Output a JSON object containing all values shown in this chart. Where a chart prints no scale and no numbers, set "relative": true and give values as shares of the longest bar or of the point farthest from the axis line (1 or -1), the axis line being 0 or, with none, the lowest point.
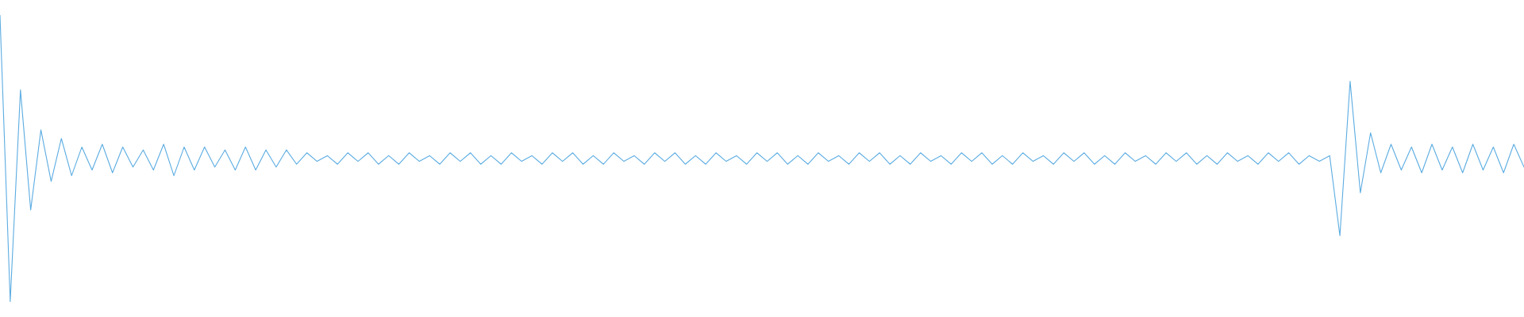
{
  "chart_data": {
    "type": "line",
    "relative": true,
    "legend": false,
    "marker": "none",
    "line_style": "solid",
    "categories": [
      null,
      null,
      null,
      null,
      null,
      null,
      null,
      null,
      null,
      null,
      null,
      null,
      null,
      null,
      null,
      null,
      null,
      null,
      null,
      null,
      null,
      null,
      null,
      null,
      null,
      null,
      null,
      null,
      null,
      null,
      null,
      null,
      null,
      null,
      null,
      null,
      null,
      null,
      null,
      null,
      null,
      null,
      null,
      null,
      null,
      null,
      null,
      null,
      null,
      null,
      null,
      null,
      null,
      null,
      null,
      null,
      null,
      null,
      null,
      null,
      null,
      null,
      null,
      null,
      null,
      null,
      null,
      null,
      null,
      null,
      null,
      null,
      null,
      null,
      null,
      null,
      null,
      null,
      null,
      null,
      null,
      null,
      null,
      null,
      null,
      null,
      null,
      null,
      null,
      null,
      null,
      null,
      null,
      null,
      null,
      null,
      null,
      null,
      null,
      null,
      null,
      null,
      null,
      null,
      null,
      null,
      null,
      null,
      null,
      null,
      null,
      null,
      null,
      null,
      null,
      null,
      null,
      null,
      null,
      null,
      null,
      null,
      null,
      null,
      null,
      null,
      null,
      null,
      null,
      null,
      null,
      null,
      null,
      null,
      null,
      null,
      null,
      null,
      null,
      null,
      null,
      null,
      null,
      null,
      null,
      null,
      null,
      null,
      null,
      null
    ],
    "series": [
      {
        "color": "#5dade2",
        "values": [
          1.0,
          0.0,
          0.74,
          0.32,
          0.6,
          0.42,
          0.57,
          0.44,
          0.54,
          0.46,
          0.55,
          0.45,
          0.54,
          0.47,
          0.53,
          0.46,
          0.55,
          0.44,
          0.54,
          0.46,
          0.54,
          0.47,
          0.53,
          0.46,
          0.54,
          0.46,
          0.53,
          0.47,
          0.53,
          0.48,
          0.52,
          0.49,
          0.51,
          0.48,
          0.52,
          0.49,
          0.52,
          0.48,
          0.51,
          0.48,
          0.52,
          0.49,
          0.51,
          0.48,
          0.52,
          0.49,
          0.52,
          0.48,
          0.51,
          0.48,
          0.52,
          0.49,
          0.51,
          0.48,
          0.52,
          0.49,
          0.52,
          0.48,
          0.51,
          0.48,
          0.52,
          0.49,
          0.51,
          0.48,
          0.52,
          0.49,
          0.52,
          0.48,
          0.51,
          0.48,
          0.52,
          0.49,
          0.51,
          0.48,
          0.52,
          0.49,
          0.52,
          0.48,
          0.51,
          0.48,
          0.52,
          0.49,
          0.51,
          0.48,
          0.52,
          0.49,
          0.52,
          0.48,
          0.51,
          0.48,
          0.52,
          0.49,
          0.51,
          0.48,
          0.52,
          0.49,
          0.52,
          0.48,
          0.51,
          0.48,
          0.52,
          0.49,
          0.51,
          0.48,
          0.52,
          0.49,
          0.52,
          0.48,
          0.51,
          0.48,
          0.52,
          0.49,
          0.51,
          0.48,
          0.52,
          0.49,
          0.52,
          0.48,
          0.51,
          0.48,
          0.52,
          0.49,
          0.51,
          0.48,
          0.52,
          0.49,
          0.52,
          0.48,
          0.51,
          0.49,
          0.51,
          0.23,
          0.77,
          0.38,
          0.59,
          0.45,
          0.55,
          0.46,
          0.54,
          0.45,
          0.55,
          0.46,
          0.54,
          0.45,
          0.55,
          0.46,
          0.54,
          0.45,
          0.55,
          0.47
        ]
      }
    ]
  }
}
